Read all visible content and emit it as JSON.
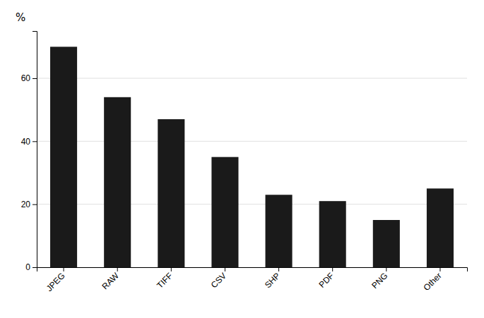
{
  "chart_data": {
    "type": "bar",
    "categories": [
      "JPEG",
      "RAW",
      "TIFF",
      "CSV",
      "SHP",
      "PDF",
      "PNG",
      "Other"
    ],
    "values": [
      70,
      54,
      47,
      35,
      23,
      21,
      15,
      25
    ],
    "color": "#1a1a1a",
    "ylabel": "%",
    "ylim": [
      0,
      75
    ],
    "yticks": [
      0,
      20,
      40,
      60
    ],
    "grid": true
  }
}
